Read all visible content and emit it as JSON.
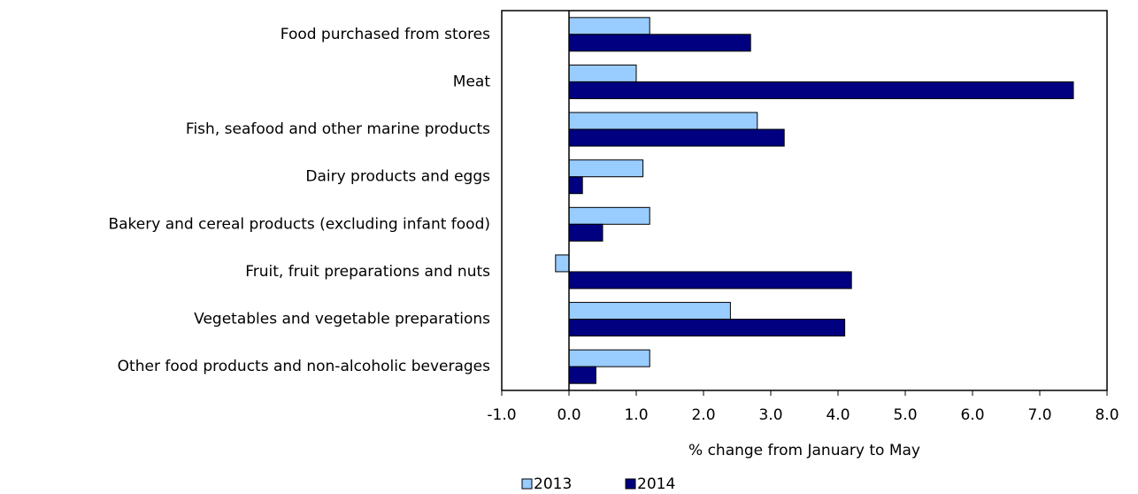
{
  "chart_data": {
    "type": "hbar",
    "xlabel": "% change from January to May",
    "categories": [
      "Food purchased from stores",
      "Meat",
      "Fish, seafood and other marine products",
      "Dairy products and eggs",
      "Bakery and cereal products (excluding infant food)",
      "Fruit, fruit preparations and nuts",
      "Vegetables and vegetable preparations",
      "Other food products and non-alcoholic beverages"
    ],
    "series": [
      {
        "name": "2013",
        "color": "#99ccff",
        "values": [
          1.2,
          1.0,
          2.8,
          1.1,
          1.2,
          -0.2,
          2.4,
          1.2
        ]
      },
      {
        "name": "2014",
        "color": "#000080",
        "values": [
          2.7,
          7.5,
          3.2,
          0.2,
          0.5,
          4.2,
          4.1,
          0.4
        ]
      }
    ],
    "xlim": [
      -1,
      8
    ],
    "xticks": [
      {
        "value": -1,
        "label": "-1.0"
      },
      {
        "value": 0,
        "label": "0.0"
      },
      {
        "value": 1,
        "label": "1.0"
      },
      {
        "value": 2,
        "label": "2.0"
      },
      {
        "value": 3,
        "label": "3.0"
      },
      {
        "value": 4,
        "label": "4.0"
      },
      {
        "value": 5,
        "label": "5.0"
      },
      {
        "value": 6,
        "label": "6.0"
      },
      {
        "value": 7,
        "label": "7.0"
      },
      {
        "value": 8,
        "label": "8.0"
      }
    ],
    "grid": false,
    "legend": "bottom"
  }
}
